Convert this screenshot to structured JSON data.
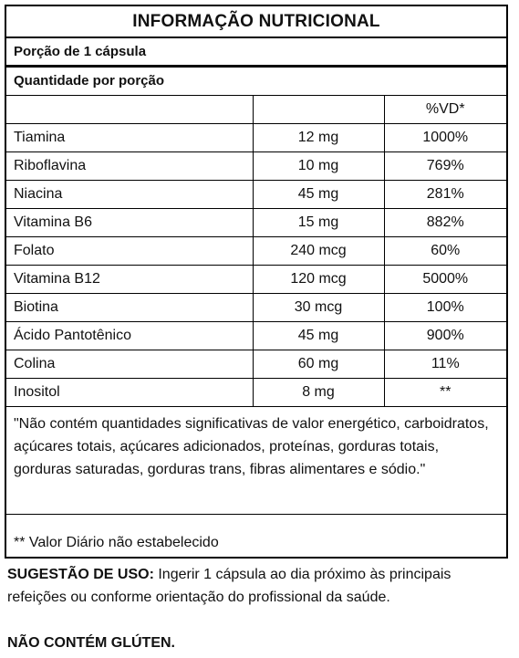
{
  "title": "INFORMAÇÃO NUTRICIONAL",
  "portion": "Porção de 1 cápsula",
  "quantity_header": "Quantidade por porção",
  "table": {
    "headers": [
      "",
      "",
      "%VD*"
    ],
    "rows": [
      {
        "nutrient": "Tiamina",
        "amount": "12 mg",
        "vd": "1000%"
      },
      {
        "nutrient": "Riboflavina",
        "amount": "10 mg",
        "vd": "769%"
      },
      {
        "nutrient": "Niacina",
        "amount": "45 mg",
        "vd": "281%"
      },
      {
        "nutrient": "Vitamina B6",
        "amount": "15 mg",
        "vd": "882%"
      },
      {
        "nutrient": "Folato",
        "amount": "240 mcg",
        "vd": "60%"
      },
      {
        "nutrient": "Vitamina B12",
        "amount": "120 mcg",
        "vd": "5000%"
      },
      {
        "nutrient": "Biotina",
        "amount": "30 mcg",
        "vd": "100%"
      },
      {
        "nutrient": "Ácido Pantotênico",
        "amount": "45 mg",
        "vd": "900%"
      },
      {
        "nutrient": "Colina",
        "amount": "60 mg",
        "vd": "11%"
      },
      {
        "nutrient": "Inositol",
        "amount": "8 mg",
        "vd": "**"
      }
    ]
  },
  "note": "\"Não contém quantidades significativas de valor energético, carboidratos, açúcares totais, açúcares adicionados, proteínas, gorduras totais, gorduras saturadas, gorduras trans, fibras alimentares e sódio.\"",
  "vd_note": "** Valor Diário não estabelecido",
  "usage": {
    "label": "SUGESTÃO DE USO:",
    "text": " Ingerir 1 cápsula ao dia próximo às principais refeições ou conforme orientação do profissional da saúde."
  },
  "gluten": "NÃO CONTÉM GLÚTEN."
}
